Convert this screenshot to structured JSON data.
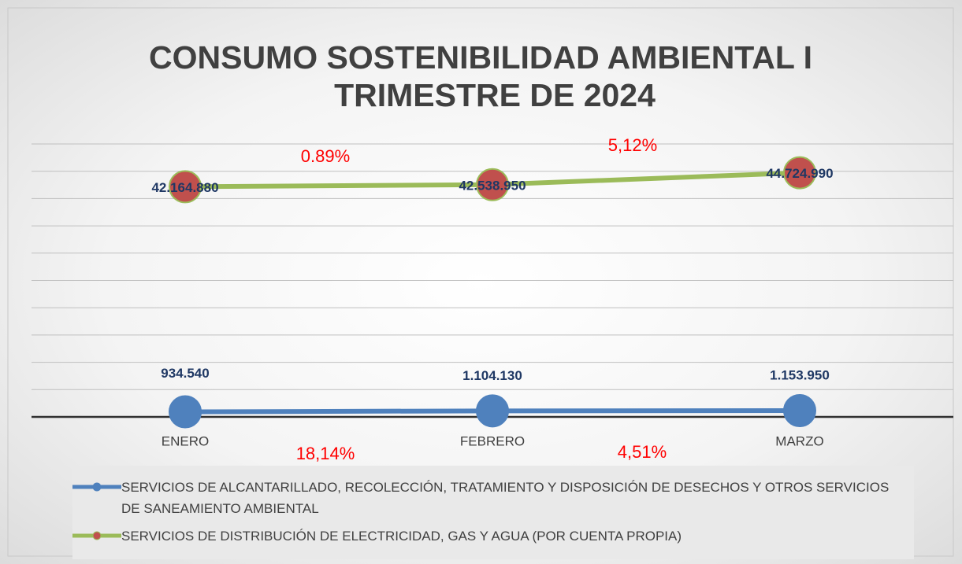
{
  "chart_data": {
    "type": "line",
    "title": [
      "CONSUMO SOSTENIBILIDAD AMBIENTAL  I",
      "TRIMESTRE DE 2024"
    ],
    "categories": [
      "ENERO",
      "FEBRERO",
      "MARZO"
    ],
    "series": [
      {
        "name": "SERVICIOS DE ALCANTARILLADO, RECOLECCIÓN, TRATAMIENTO Y DISPOSICIÓN DE DESECHOS Y OTROS SERVICIOS DE SANEAMIENTO AMBIENTAL",
        "color": "#4f81bd",
        "marker_color": "#4f81bd",
        "values": [
          934540,
          1104130,
          1153950
        ],
        "value_labels": [
          "934.540",
          "1.104.130",
          "1.153.950"
        ]
      },
      {
        "name": "SERVICIOS DE DISTRIBUCIÓN DE ELECTRICIDAD, GAS Y AGUA (POR CUENTA PROPIA)",
        "color": "#9bbb59",
        "marker_color": "#c0504d",
        "values": [
          42164880,
          42538950,
          44724990
        ],
        "value_labels": [
          "42.164.880",
          "42.538.950",
          "44.724.990"
        ]
      }
    ],
    "annotations": [
      "0.89%",
      "5,12%",
      "18,14%",
      "4,51%"
    ],
    "ylim": [
      0,
      50000000
    ],
    "yticks": [
      0,
      5000000,
      10000000,
      15000000,
      20000000,
      25000000,
      30000000,
      35000000,
      40000000,
      45000000,
      50000000
    ],
    "grid": true
  }
}
